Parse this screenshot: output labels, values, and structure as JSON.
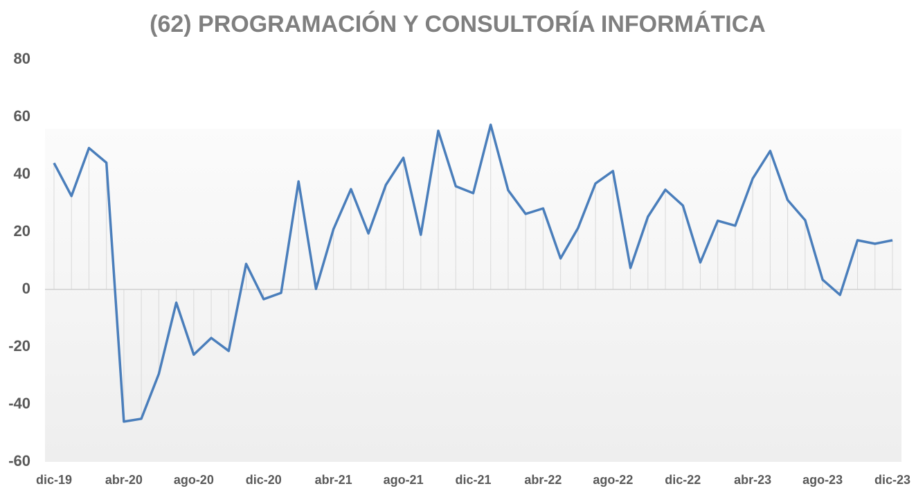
{
  "chart_data": {
    "type": "line",
    "title": "(62) PROGRAMACIÓN Y CONSULTORÍA INFORMÁTICA",
    "categories": [
      "dic-19",
      null,
      null,
      null,
      "abr-20",
      null,
      null,
      null,
      "ago-20",
      null,
      null,
      null,
      "dic-20",
      null,
      null,
      null,
      "abr-21",
      null,
      null,
      null,
      "ago-21",
      null,
      null,
      null,
      "dic-21",
      null,
      null,
      null,
      "abr-22",
      null,
      null,
      null,
      "ago-22",
      null,
      null,
      null,
      "dic-22",
      null,
      null,
      null,
      "abr-23",
      null,
      null,
      null,
      "ago-23",
      null,
      null,
      null,
      "dic-23"
    ],
    "values": [
      44,
      32.5,
      49.2,
      44.1,
      -46,
      -45,
      -29.4,
      -4.6,
      -22.7,
      -16.9,
      -21.4,
      8.9,
      -3.4,
      -1.2,
      37.6,
      0.2,
      21,
      34.9,
      19.5,
      36.4,
      45.8,
      19,
      55.2,
      35.9,
      33.5,
      57.3,
      34.5,
      26.3,
      28.2,
      10.8,
      21.4,
      36.9,
      41.2,
      7.5,
      25.3,
      34.7,
      29.2,
      9.4,
      23.9,
      22.2,
      38.6,
      48.2,
      31.1,
      24.1,
      3.4,
      -1.9,
      17.1,
      15.9,
      17.1
    ],
    "color": "#4a7ebb",
    "ylim": [
      -60,
      80
    ],
    "yticks": [
      -60,
      -40,
      -20,
      0,
      20,
      40,
      60,
      80
    ],
    "drop_lines": true
  }
}
